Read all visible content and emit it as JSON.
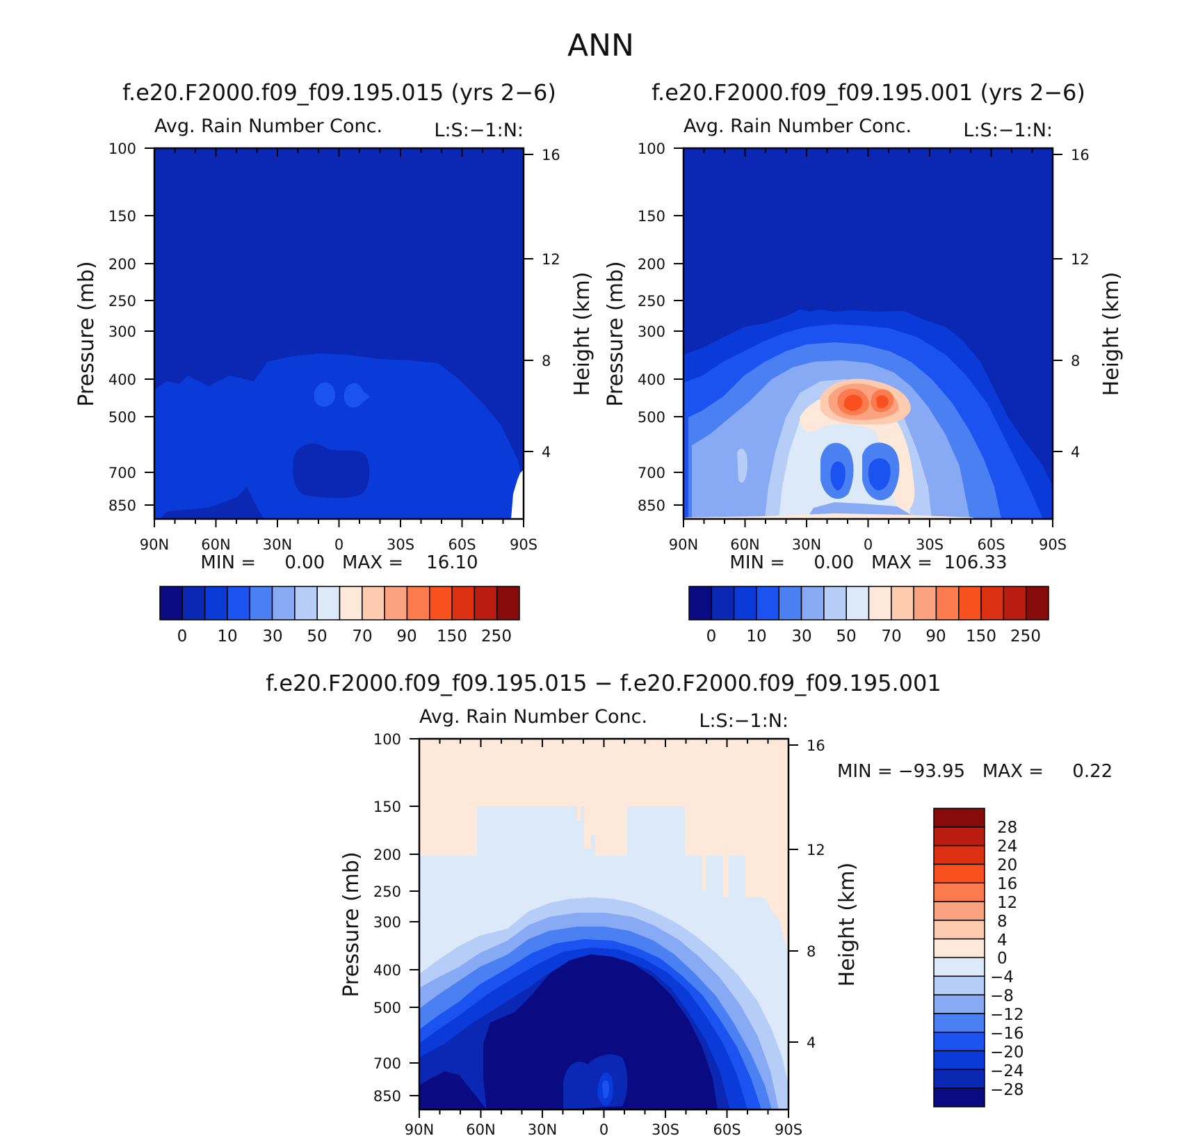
{
  "figure_title": "ANN",
  "colors": {
    "panel_scale": [
      "#0a0a82",
      "#0a28b4",
      "#0a3ad8",
      "#1b52f0",
      "#4a80f2",
      "#88aaf5",
      "#b5cdf7",
      "#dce9f9",
      "#fde8d9",
      "#fccbb0",
      "#fba380",
      "#fb7a4e",
      "#f8501e",
      "#dc3012",
      "#b81d10",
      "#870b0b"
    ],
    "diff_scale": [
      "#0a0a82",
      "#0a28b4",
      "#0a3ad8",
      "#1b52f0",
      "#4a80f2",
      "#88aaf5",
      "#b5cdf7",
      "#dce9f9",
      "#fde8d9",
      "#fccbb0",
      "#fba380",
      "#fb7a4e",
      "#f8501e",
      "#dc3012",
      "#b81d10",
      "#870b0b"
    ]
  },
  "chart_data": [
    {
      "type": "contour",
      "id": "p1",
      "title": "f.e20.F2000.f09_f09.195.015 (yrs 2-6)",
      "subtitle": "Avg. Rain Number Conc.",
      "right_label": "L:S:-1:N:",
      "ylabel": "Pressure (mb)",
      "y2label": "Height (km)",
      "x_ticks": [
        "90N",
        "60N",
        "30N",
        "0",
        "30S",
        "60S",
        "90S"
      ],
      "y_ticks": [
        "100",
        "150",
        "200",
        "250",
        "300",
        "400",
        "500",
        "700",
        "850"
      ],
      "y2_ticks": [
        "16",
        "12",
        "8",
        "4"
      ],
      "minmax": "MIN =     0.00   MAX =    16.10",
      "colorbar_labels": [
        "0",
        "10",
        "30",
        "50",
        "70",
        "90",
        "150",
        "250"
      ],
      "stats": {
        "min": 0.0,
        "max": 16.1
      }
    },
    {
      "type": "contour",
      "id": "p2",
      "title": "f.e20.F2000.f09_f09.195.001 (yrs 2-6)",
      "subtitle": "Avg. Rain Number Conc.",
      "right_label": "L:S:-1:N:",
      "ylabel": "Pressure (mb)",
      "y2label": "Height (km)",
      "x_ticks": [
        "90N",
        "60N",
        "30N",
        "0",
        "30S",
        "60S",
        "90S"
      ],
      "y_ticks": [
        "100",
        "150",
        "200",
        "250",
        "300",
        "400",
        "500",
        "700",
        "850"
      ],
      "y2_ticks": [
        "16",
        "12",
        "8",
        "4"
      ],
      "minmax": "MIN =     0.00   MAX =  106.33",
      "colorbar_labels": [
        "0",
        "10",
        "30",
        "50",
        "70",
        "90",
        "150",
        "250"
      ],
      "stats": {
        "min": 0.0,
        "max": 106.33
      }
    },
    {
      "type": "contour",
      "id": "p3",
      "title": "f.e20.F2000.f09_f09.195.015 - f.e20.F2000.f09_f09.195.001",
      "subtitle": "Avg. Rain Number Conc.",
      "right_label": "L:S:-1:N:",
      "ylabel": "Pressure (mb)",
      "y2label": "Height (km)",
      "x_ticks": [
        "90N",
        "60N",
        "30N",
        "0",
        "30S",
        "60S",
        "90S"
      ],
      "y_ticks": [
        "100",
        "150",
        "200",
        "250",
        "300",
        "400",
        "500",
        "700",
        "850"
      ],
      "y2_ticks": [
        "16",
        "12",
        "8",
        "4"
      ],
      "minmax": "MIN = -93.95   MAX =     0.22",
      "colorbar_labels": [
        "28",
        "24",
        "20",
        "16",
        "12",
        "8",
        "4",
        "0",
        "-4",
        "-8",
        "-12",
        "-16",
        "-20",
        "-24",
        "-28"
      ],
      "stats": {
        "min": -93.95,
        "max": 0.22
      }
    }
  ]
}
